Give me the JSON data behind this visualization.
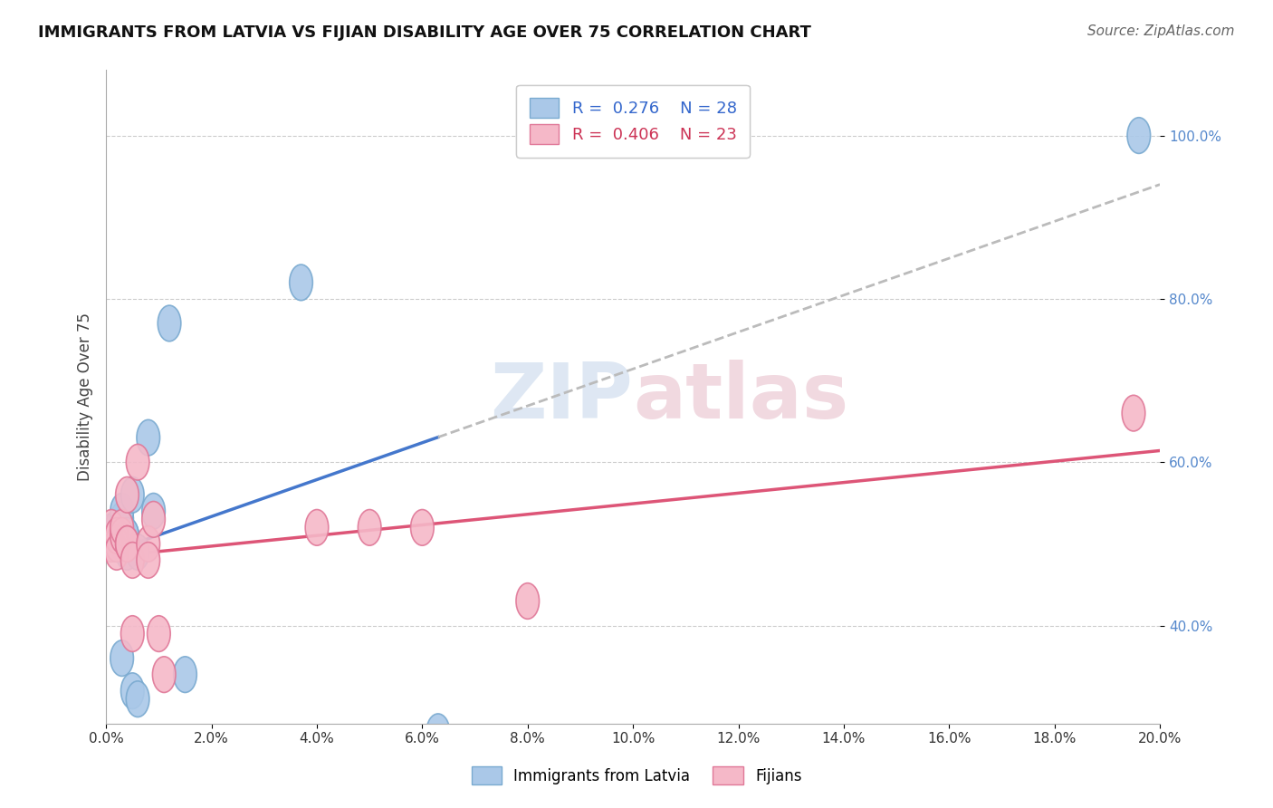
{
  "title": "IMMIGRANTS FROM LATVIA VS FIJIAN DISABILITY AGE OVER 75 CORRELATION CHART",
  "source_text": "Source: ZipAtlas.com",
  "ylabel": "Disability Age Over 75",
  "watermark": "ZIPatlas",
  "legend": {
    "blue_R": "R =  0.276",
    "blue_N": "N = 28",
    "pink_R": "R =  0.406",
    "pink_N": "N = 23"
  },
  "blue_label": "Immigrants from Latvia",
  "pink_label": "Fijians",
  "blue_color": "#aac8e8",
  "pink_color": "#f5b8c8",
  "blue_edge": "#7aaad0",
  "pink_edge": "#e07898",
  "trend_blue": "#4477cc",
  "trend_pink": "#dd5577",
  "trend_ext": "#bbbbbb",
  "xlim": [
    0.0,
    0.2
  ],
  "ylim": [
    0.28,
    1.08
  ],
  "blue_points_x": [
    0.001,
    0.001,
    0.001,
    0.002,
    0.002,
    0.002,
    0.002,
    0.002,
    0.002,
    0.003,
    0.003,
    0.003,
    0.003,
    0.003,
    0.004,
    0.004,
    0.004,
    0.005,
    0.005,
    0.006,
    0.006,
    0.008,
    0.009,
    0.012,
    0.015,
    0.037,
    0.063,
    0.196
  ],
  "blue_points_y": [
    0.51,
    0.515,
    0.5,
    0.5,
    0.52,
    0.51,
    0.5,
    0.51,
    0.51,
    0.52,
    0.53,
    0.54,
    0.5,
    0.36,
    0.51,
    0.51,
    0.49,
    0.56,
    0.32,
    0.49,
    0.31,
    0.63,
    0.54,
    0.77,
    0.34,
    0.82,
    0.27,
    1.0
  ],
  "pink_points_x": [
    0.001,
    0.001,
    0.002,
    0.002,
    0.002,
    0.003,
    0.003,
    0.004,
    0.004,
    0.004,
    0.005,
    0.005,
    0.006,
    0.008,
    0.008,
    0.009,
    0.01,
    0.011,
    0.04,
    0.05,
    0.06,
    0.08,
    0.195
  ],
  "pink_points_y": [
    0.5,
    0.52,
    0.5,
    0.51,
    0.49,
    0.51,
    0.52,
    0.5,
    0.56,
    0.5,
    0.48,
    0.39,
    0.6,
    0.5,
    0.48,
    0.53,
    0.39,
    0.34,
    0.52,
    0.52,
    0.52,
    0.43,
    0.66
  ],
  "yticks": [
    0.4,
    0.6,
    0.8,
    1.0
  ],
  "ytick_labels": [
    "40.0%",
    "60.0%",
    "80.0%",
    "100.0%"
  ],
  "xticks": [
    0.0,
    0.02,
    0.04,
    0.06,
    0.08,
    0.1,
    0.12,
    0.14,
    0.16,
    0.18,
    0.2
  ],
  "xtick_labels": [
    "0.0%",
    "2.0%",
    "4.0%",
    "6.0%",
    "8.0%",
    "10.0%",
    "12.0%",
    "14.0%",
    "16.0%",
    "18.0%",
    "20.0%"
  ],
  "background_color": "#ffffff",
  "grid_color": "#cccccc",
  "blue_trend_end_x": 0.063,
  "title_fontsize": 13,
  "source_fontsize": 11
}
